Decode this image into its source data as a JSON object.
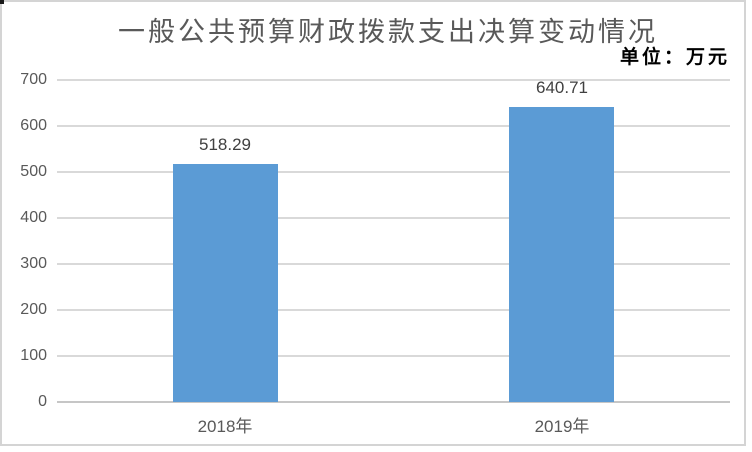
{
  "chart_data": {
    "type": "bar",
    "title": "一般公共预算财政拨款支出决算变动情况",
    "unit_label": "单位：万元",
    "categories": [
      "2018年",
      "2019年"
    ],
    "values": [
      518.29,
      640.71
    ],
    "value_labels": [
      "518.29",
      "640.71"
    ],
    "xlabel": "",
    "ylabel": "",
    "ylim": [
      0,
      700
    ],
    "yticks": [
      0,
      100,
      200,
      300,
      400,
      500,
      600,
      700
    ],
    "grid": true,
    "legend": false,
    "colors": {
      "bar": "#5b9bd5",
      "gridline": "#d9d9d9",
      "axis_line": "#c6c6c6",
      "title_text": "#595959",
      "tick_text": "#595959",
      "value_text": "#404040",
      "unit_text": "#000000",
      "frame_border": "#d4d4d4",
      "background": "#ffffff"
    }
  }
}
